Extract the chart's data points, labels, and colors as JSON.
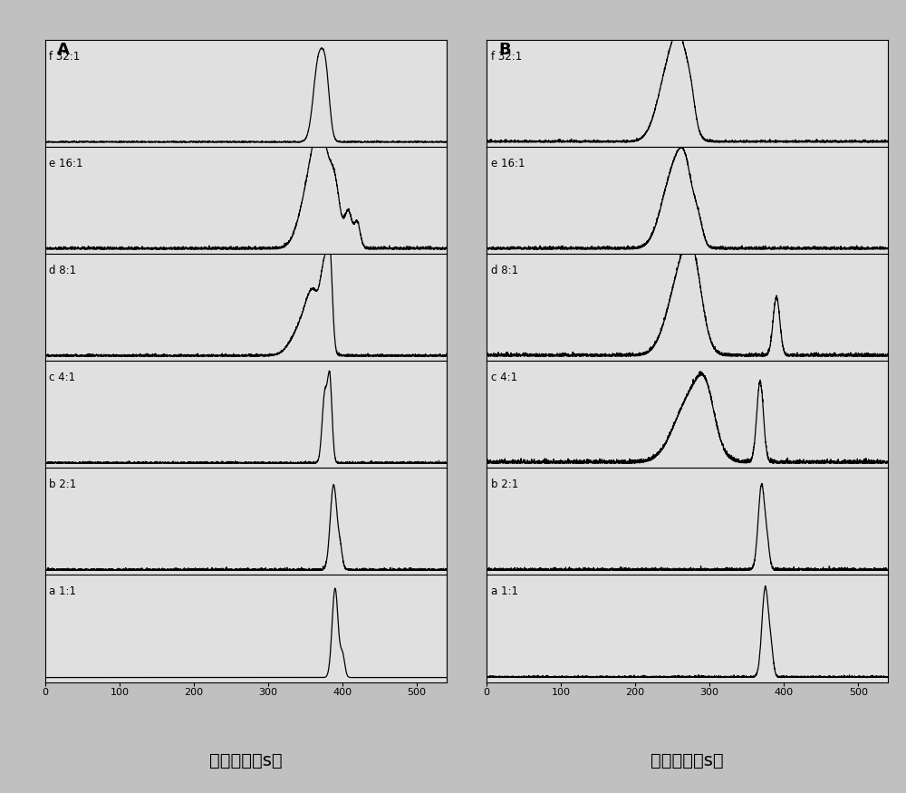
{
  "panel_A_label": "A",
  "panel_B_label": "B",
  "xlabel": "迁移时间（s）",
  "xlim": [
    0,
    540
  ],
  "xticks": [
    0,
    100,
    200,
    300,
    400,
    500
  ],
  "row_labels_A": [
    "f 32:1",
    "e 16:1",
    "d 8:1",
    "c 4:1",
    "b 2:1",
    "a 1:1"
  ],
  "row_labels_B": [
    "f 32:1",
    "e 16:1",
    "d 8:1",
    "c 4:1",
    "b 2:1",
    "a 1:1"
  ],
  "background_color": "#c0c0c0",
  "line_color": "#000000",
  "panel_bg": "#e0e0e0"
}
